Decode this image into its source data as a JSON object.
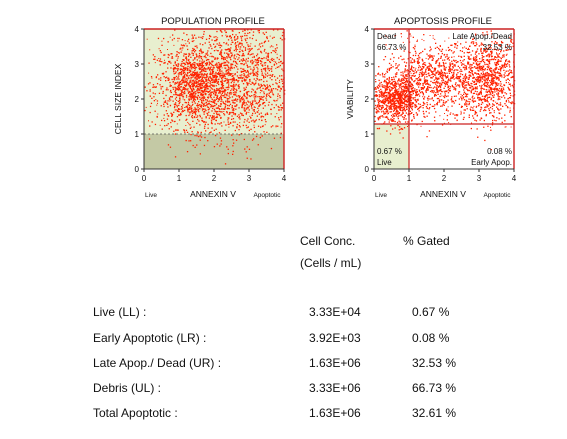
{
  "population_plot": {
    "title": "POPULATION PROFILE",
    "xlabel": "ANNEXIN V",
    "ylabel": "CELL SIZE INDEX",
    "x_left_label": "Live",
    "x_right_label": "Apoptotic",
    "xticks": [
      "0",
      "1",
      "2",
      "3",
      "4"
    ],
    "yticks": [
      "0",
      "1",
      "2",
      "3",
      "4"
    ]
  },
  "apoptosis_plot": {
    "title": "APOPTOSIS PROFILE",
    "xlabel": "ANNEXIN V",
    "ylabel": "VIABILITY",
    "x_left_label": "Live",
    "x_right_label": "Apoptotic",
    "xticks": [
      "0",
      "1",
      "2",
      "3",
      "4"
    ],
    "yticks": [
      "0",
      "1",
      "2",
      "3",
      "4"
    ],
    "quadrants": {
      "ul_name": "Dead",
      "ul_pct": "66.73 %",
      "ur_name": "Late Apop./Dead",
      "ur_pct": "32.53 %",
      "ll_pct": "0.67 %",
      "ll_name": "Live",
      "lr_pct": "0.08 %",
      "lr_name": "Early Apop."
    }
  },
  "table": {
    "col_conc_line1": "Cell Conc.",
    "col_conc_line2": "(Cells / mL)",
    "col_gated": "% Gated",
    "rows": [
      {
        "label": "Live (LL) :",
        "conc": "3.33E+04",
        "gated": "0.67 %"
      },
      {
        "label": "Early Apoptotic (LR) :",
        "conc": "3.92E+03",
        "gated": "0.08 %"
      },
      {
        "label": "Late Apop./ Dead (UR) :",
        "conc": "1.63E+06",
        "gated": "32.53 %"
      },
      {
        "label": "Debris (UL) :",
        "conc": "3.33E+06",
        "gated": "66.73 %"
      },
      {
        "label": "Total Apoptotic :",
        "conc": "1.63E+06",
        "gated": "32.61 %"
      }
    ]
  },
  "chart_data": [
    {
      "type": "scatter",
      "title": "POPULATION PROFILE",
      "xlabel": "ANNEXIN V",
      "ylabel": "CELL SIZE INDEX",
      "xlim": [
        0,
        4
      ],
      "ylim": [
        0,
        4
      ],
      "gate_y": 1,
      "colors": {
        "points": "#ff2200",
        "background": "#e8efcf",
        "gated_region": "#c4c9a5",
        "border": "#cc2222"
      },
      "density_clusters": [
        {
          "x_center": 1.5,
          "y_center": 2.4,
          "x_spread": 0.6,
          "y_spread": 0.6
        },
        {
          "x_center": 2.8,
          "y_center": 2.6,
          "x_spread": 0.8,
          "y_spread": 0.9
        }
      ]
    },
    {
      "type": "scatter",
      "title": "APOPTOSIS PROFILE",
      "xlabel": "ANNEXIN V",
      "ylabel": "VIABILITY",
      "xlim": [
        0,
        4
      ],
      "ylim": [
        0,
        4
      ],
      "quadrant_x": 1.0,
      "quadrant_y": 1.3,
      "quadrant_percent": {
        "UL": 66.73,
        "UR": 32.53,
        "LL": 0.67,
        "LR": 0.08
      },
      "colors": {
        "points": "#ff2200",
        "background": "#ffffff",
        "live_region": "#e8efcf",
        "quadrant_lines": "#cc2222"
      },
      "density_clusters": [
        {
          "x_center": 0.6,
          "y_center": 2.0,
          "x_spread": 0.35,
          "y_spread": 0.35
        },
        {
          "x_center": 1.8,
          "y_center": 2.6,
          "x_spread": 0.7,
          "y_spread": 0.45
        },
        {
          "x_center": 3.3,
          "y_center": 2.6,
          "x_spread": 0.45,
          "y_spread": 0.6
        }
      ]
    }
  ]
}
